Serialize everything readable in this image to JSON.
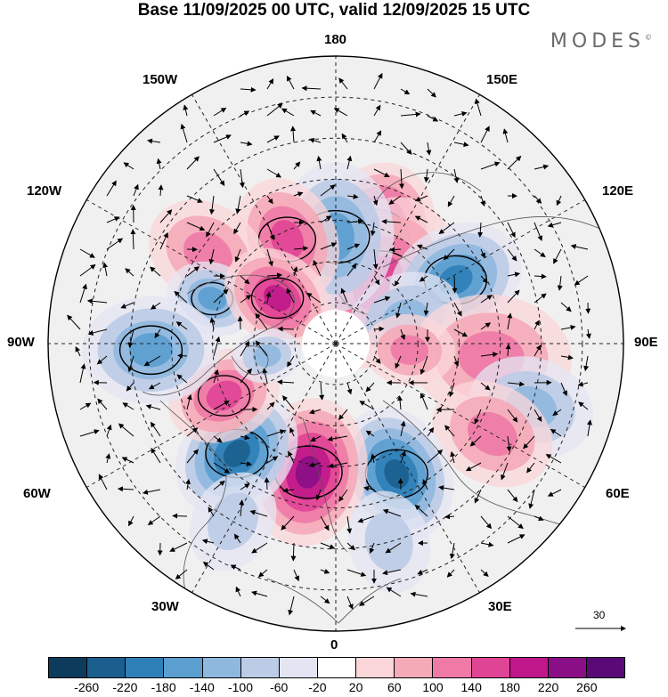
{
  "title": "Base 11/09/2025 00 UTC, valid 12/09/2025 15 UTC",
  "brand": "MODES",
  "brand_mark": "©",
  "longitude_labels": {
    "n180": "180",
    "w150": "150W",
    "e150": "150E",
    "w120": "120W",
    "e120": "120E",
    "w90": "90W",
    "e90": "90E",
    "w60": "60W",
    "e60": "60E",
    "w30": "30W",
    "e30": "30E",
    "s0": "0"
  },
  "reference_vector": "30",
  "colorbar": {
    "ticks": [
      "-260",
      "-220",
      "-180",
      "-140",
      "-100",
      "-60",
      "-20",
      "20",
      "60",
      "100",
      "140",
      "180",
      "220",
      "260"
    ],
    "colors": [
      "#0d3b5c",
      "#1b5f8e",
      "#2f7fb8",
      "#5a9fd0",
      "#8fb8df",
      "#bccbe6",
      "#e4e5f3",
      "#ffffff",
      "#fbd7d9",
      "#f5aab8",
      "#ee7aa5",
      "#e04494",
      "#c0188b",
      "#8a0e85",
      "#5a0a76"
    ]
  },
  "anomalies": [
    {
      "lon": 160,
      "lat": 62,
      "r": 0.13,
      "sign": 1,
      "strength": 5
    },
    {
      "lon": 145,
      "lat": 72,
      "r": 0.16,
      "sign": 1,
      "strength": 3
    },
    {
      "lon": 180,
      "lat": 64,
      "r": 0.13,
      "sign": -1,
      "strength": 3
    },
    {
      "lon": -155,
      "lat": 62,
      "r": 0.11,
      "sign": 1,
      "strength": 3
    },
    {
      "lon": -125,
      "lat": 52,
      "r": 0.11,
      "sign": 1,
      "strength": 2
    },
    {
      "lon": -110,
      "lat": 58,
      "r": 0.08,
      "sign": -1,
      "strength": 3
    },
    {
      "lon": -128,
      "lat": 72,
      "r": 0.1,
      "sign": 1,
      "strength": 4
    },
    {
      "lon": 118,
      "lat": 57,
      "r": 0.12,
      "sign": -1,
      "strength": 4
    },
    {
      "lon": 110,
      "lat": 72,
      "r": 0.1,
      "sign": -1,
      "strength": 2
    },
    {
      "lon": 85,
      "lat": 52,
      "r": 0.14,
      "sign": 1,
      "strength": 2
    },
    {
      "lon": 72,
      "lat": 40,
      "r": 0.11,
      "sign": -1,
      "strength": 2
    },
    {
      "lon": 60,
      "lat": 46,
      "r": 0.11,
      "sign": 1,
      "strength": 2
    },
    {
      "lon": 25,
      "lat": 55,
      "r": 0.12,
      "sign": -1,
      "strength": 5
    },
    {
      "lon": -12,
      "lat": 58,
      "r": 0.13,
      "sign": 1,
      "strength": 5
    },
    {
      "lon": -42,
      "lat": 54,
      "r": 0.12,
      "sign": -1,
      "strength": 5
    },
    {
      "lon": -65,
      "lat": 60,
      "r": 0.1,
      "sign": 1,
      "strength": 3
    },
    {
      "lon": -88,
      "lat": 45,
      "r": 0.12,
      "sign": -1,
      "strength": 3
    },
    {
      "lon": -80,
      "lat": 73,
      "r": 0.06,
      "sign": -1,
      "strength": 2
    },
    {
      "lon": 85,
      "lat": 72,
      "r": 0.08,
      "sign": 1,
      "strength": 2
    },
    {
      "lon": 15,
      "lat": 40,
      "r": 0.09,
      "sign": -1,
      "strength": 1
    },
    {
      "lon": -30,
      "lat": 40,
      "r": 0.09,
      "sign": -1,
      "strength": 1
    }
  ]
}
